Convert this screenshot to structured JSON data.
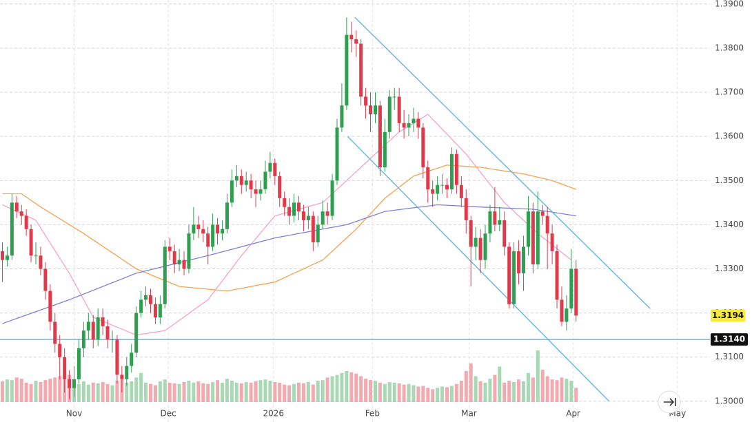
{
  "chart_data": {
    "type": "candlestick",
    "open": [
      1.334,
      1.332,
      1.333,
      1.345,
      1.343,
      1.342,
      1.339,
      1.333,
      1.333,
      1.33,
      1.325,
      1.318,
      1.313,
      1.31,
      1.305,
      1.303,
      1.305,
      1.312,
      1.316,
      1.318,
      1.314,
      1.319,
      1.317,
      1.314,
      1.314,
      1.306,
      1.305,
      1.308,
      1.311,
      1.32,
      1.323,
      1.324,
      1.322,
      1.319,
      1.322,
      1.335,
      1.334,
      1.331,
      1.332,
      1.33,
      1.338,
      1.34,
      1.339,
      1.338,
      1.335,
      1.34,
      1.338,
      1.339,
      1.345,
      1.35,
      1.351,
      1.349,
      1.35,
      1.348,
      1.347,
      1.348,
      1.352,
      1.354,
      1.351,
      1.346,
      1.344,
      1.342,
      1.345,
      1.343,
      1.341,
      1.342,
      1.336,
      1.34,
      1.343,
      1.342,
      1.35,
      1.362,
      1.367,
      1.383,
      1.382,
      1.381,
      1.369,
      1.367,
      1.365,
      1.367,
      1.353,
      1.361,
      1.369,
      1.369,
      1.363,
      1.362,
      1.363,
      1.364,
      1.362,
      1.353,
      1.348,
      1.347,
      1.349,
      1.349,
      1.348,
      1.356,
      1.349,
      1.346,
      1.341,
      1.335,
      1.337,
      1.332,
      1.338,
      1.343,
      1.34,
      1.341,
      1.335,
      1.322,
      1.334,
      1.329,
      1.335,
      1.343,
      1.331,
      1.343,
      1.342,
      1.338,
      1.334,
      1.323,
      1.318,
      1.321,
      1.33
    ],
    "high": [
      1.336,
      1.335,
      1.347,
      1.3465,
      1.3445,
      1.3435,
      1.34,
      1.336,
      1.335,
      1.3315,
      1.3265,
      1.32,
      1.315,
      1.312,
      1.307,
      1.308,
      1.314,
      1.318,
      1.32,
      1.3195,
      1.321,
      1.321,
      1.3185,
      1.316,
      1.315,
      1.308,
      1.31,
      1.313,
      1.3215,
      1.325,
      1.326,
      1.3255,
      1.3235,
      1.324,
      1.3365,
      1.337,
      1.3355,
      1.3345,
      1.334,
      1.34,
      1.344,
      1.342,
      1.341,
      1.3395,
      1.3425,
      1.3415,
      1.341,
      1.347,
      1.3525,
      1.3535,
      1.3525,
      1.352,
      1.3515,
      1.35,
      1.35,
      1.3545,
      1.3565,
      1.355,
      1.352,
      1.3475,
      1.346,
      1.347,
      1.3465,
      1.3445,
      1.344,
      1.343,
      1.342,
      1.3455,
      1.345,
      1.3515,
      1.364,
      1.372,
      1.387,
      1.386,
      1.384,
      1.382,
      1.371,
      1.37,
      1.37,
      1.368,
      1.364,
      1.3705,
      1.371,
      1.371,
      1.366,
      1.365,
      1.3665,
      1.3655,
      1.363,
      1.3545,
      1.35,
      1.351,
      1.3515,
      1.3505,
      1.3575,
      1.357,
      1.351,
      1.348,
      1.342,
      1.3395,
      1.339,
      1.34,
      1.3445,
      1.3485,
      1.344,
      1.343,
      1.336,
      1.336,
      1.3365,
      1.3375,
      1.3465,
      1.345,
      1.3475,
      1.3445,
      1.344,
      1.34,
      1.3355,
      1.326,
      1.324,
      1.3345,
      1.332
    ],
    "low": [
      1.327,
      1.3305,
      1.332,
      1.3415,
      1.34,
      1.3375,
      1.3315,
      1.331,
      1.3285,
      1.323,
      1.316,
      1.311,
      1.305,
      1.302,
      1.3005,
      1.301,
      1.304,
      1.31,
      1.314,
      1.312,
      1.3125,
      1.315,
      1.312,
      1.311,
      1.304,
      1.302,
      1.3035,
      1.3065,
      1.31,
      1.319,
      1.3215,
      1.32,
      1.3175,
      1.3175,
      1.321,
      1.332,
      1.329,
      1.3295,
      1.3285,
      1.329,
      1.3365,
      1.337,
      1.336,
      1.331,
      1.334,
      1.3355,
      1.3365,
      1.338,
      1.344,
      1.3485,
      1.347,
      1.3475,
      1.346,
      1.344,
      1.3455,
      1.347,
      1.3505,
      1.349,
      1.344,
      1.342,
      1.34,
      1.3405,
      1.341,
      1.3385,
      1.339,
      1.334,
      1.335,
      1.339,
      1.34,
      1.341,
      1.349,
      1.361,
      1.366,
      1.379,
      1.378,
      1.367,
      1.364,
      1.361,
      1.363,
      1.351,
      1.352,
      1.3595,
      1.366,
      1.361,
      1.3595,
      1.36,
      1.361,
      1.3595,
      1.3505,
      1.345,
      1.344,
      1.3455,
      1.347,
      1.346,
      1.347,
      1.347,
      1.344,
      1.338,
      1.326,
      1.332,
      1.329,
      1.33,
      1.336,
      1.3385,
      1.3385,
      1.333,
      1.321,
      1.321,
      1.3265,
      1.325,
      1.333,
      1.329,
      1.33,
      1.34,
      1.33,
      1.331,
      1.321,
      1.317,
      1.316,
      1.32,
      1.318
    ],
    "close": [
      1.332,
      1.333,
      1.345,
      1.343,
      1.342,
      1.339,
      1.333,
      1.333,
      1.33,
      1.325,
      1.318,
      1.313,
      1.31,
      1.305,
      1.303,
      1.305,
      1.312,
      1.316,
      1.318,
      1.314,
      1.319,
      1.317,
      1.314,
      1.314,
      1.306,
      1.305,
      1.308,
      1.311,
      1.32,
      1.323,
      1.324,
      1.322,
      1.319,
      1.322,
      1.335,
      1.334,
      1.331,
      1.332,
      1.33,
      1.338,
      1.34,
      1.339,
      1.338,
      1.335,
      1.34,
      1.338,
      1.339,
      1.345,
      1.35,
      1.351,
      1.349,
      1.35,
      1.348,
      1.347,
      1.348,
      1.352,
      1.354,
      1.351,
      1.346,
      1.344,
      1.342,
      1.345,
      1.343,
      1.341,
      1.342,
      1.336,
      1.34,
      1.343,
      1.342,
      1.35,
      1.362,
      1.367,
      1.383,
      1.382,
      1.381,
      1.369,
      1.367,
      1.365,
      1.367,
      1.353,
      1.361,
      1.369,
      1.369,
      1.363,
      1.362,
      1.363,
      1.364,
      1.362,
      1.353,
      1.348,
      1.347,
      1.349,
      1.349,
      1.348,
      1.356,
      1.349,
      1.346,
      1.341,
      1.335,
      1.337,
      1.332,
      1.338,
      1.343,
      1.34,
      1.341,
      1.335,
      1.322,
      1.334,
      1.329,
      1.335,
      1.343,
      1.331,
      1.343,
      1.342,
      1.338,
      1.334,
      1.323,
      1.318,
      1.321,
      1.33,
      1.3194
    ],
    "volume": [
      32,
      35,
      34,
      38,
      36,
      30,
      28,
      33,
      31,
      34,
      36,
      38,
      40,
      39,
      42,
      30,
      28,
      32,
      27,
      30,
      29,
      31,
      28,
      26,
      33,
      35,
      30,
      32,
      38,
      45,
      30,
      28,
      26,
      32,
      35,
      30,
      29,
      28,
      31,
      33,
      30,
      32,
      29,
      28,
      31,
      34,
      30,
      36,
      33,
      30,
      29,
      31,
      30,
      32,
      34,
      35,
      33,
      31,
      30,
      27,
      26,
      28,
      30,
      29,
      31,
      27,
      33,
      34,
      38,
      40,
      42,
      45,
      48,
      46,
      44,
      40,
      36,
      34,
      33,
      30,
      28,
      31,
      30,
      29,
      27,
      28,
      26,
      24,
      25,
      22,
      20,
      22,
      24,
      23,
      25,
      28,
      33,
      48,
      60,
      40,
      32,
      30,
      36,
      42,
      55,
      30,
      33,
      31,
      35,
      32,
      45,
      38,
      80,
      50,
      40,
      35,
      34,
      38,
      36,
      33,
      22
    ],
    "colors": {
      "up": "#2e9e4f",
      "down": "#e0394a",
      "volume_up": "#a9d8b4",
      "volume_down": "#f3a9b0"
    },
    "xlim": [
      -0.5,
      148
    ],
    "ylim": [
      1.2953,
      1.3909
    ],
    "xticks": [
      {
        "value": 15.0,
        "label": "Nov"
      },
      {
        "value": 34.7,
        "label": "Dec"
      },
      {
        "value": 56.7,
        "label": "2026"
      },
      {
        "value": 77.4,
        "label": "Feb"
      },
      {
        "value": 97.6,
        "label": "Mar"
      },
      {
        "value": 119.4,
        "label": "Apr"
      },
      {
        "value": 141.2,
        "label": "May"
      }
    ],
    "yticks": [
      {
        "value": 1.3,
        "label": "1.3000"
      },
      {
        "value": 1.31,
        "label": "1.3100"
      },
      {
        "value": 1.32,
        "label": "1.3200"
      },
      {
        "value": 1.33,
        "label": "1.3300"
      },
      {
        "value": 1.34,
        "label": "1.3400"
      },
      {
        "value": 1.35,
        "label": "1.3500"
      },
      {
        "value": 1.36,
        "label": "1.3600"
      },
      {
        "value": 1.37,
        "label": "1.3700"
      },
      {
        "value": 1.38,
        "label": "1.3800"
      },
      {
        "value": 1.39,
        "label": "1.3900"
      }
    ],
    "grid": true,
    "moving_averages": [
      {
        "color": "#f2a3cb",
        "x": [
          0,
          7,
          14,
          19,
          28,
          34,
          43,
          50,
          57,
          67,
          74,
          83,
          89,
          97,
          105,
          112,
          119
        ],
        "values": [
          1.3445,
          1.341,
          1.329,
          1.319,
          1.315,
          1.316,
          1.323,
          1.333,
          1.342,
          1.345,
          1.352,
          1.361,
          1.365,
          1.356,
          1.345,
          1.338,
          1.332
        ]
      },
      {
        "color": "#f4a24e",
        "x": [
          0,
          4,
          8,
          17,
          28,
          37,
          47,
          57,
          67,
          74,
          80,
          86,
          93,
          100,
          109,
          115,
          120
        ],
        "values": [
          1.347,
          1.347,
          1.344,
          1.338,
          1.33,
          1.326,
          1.325,
          1.327,
          1.332,
          1.339,
          1.346,
          1.351,
          1.3535,
          1.353,
          1.3515,
          1.35,
          1.348
        ]
      },
      {
        "color": "#7d80d8",
        "x": [
          0,
          14,
          28,
          43,
          57,
          72,
          80,
          91,
          100,
          111,
          120
        ],
        "values": [
          1.3176,
          1.323,
          1.329,
          1.333,
          1.337,
          1.34,
          1.343,
          1.3445,
          1.344,
          1.3435,
          1.342
        ]
      }
    ],
    "trendlines": [
      {
        "color": "#62b6e3",
        "x": [
          73.7,
          135.5
        ],
        "values": [
          1.387,
          1.321
        ]
      },
      {
        "color": "#62b6e3",
        "x": [
          72.2,
          126.9
        ],
        "values": [
          1.36,
          1.3
        ]
      }
    ],
    "horizontal_line": {
      "value": 1.314,
      "label": "1.3140",
      "color": "#5aa9de"
    },
    "last_price": 1.3194
  }
}
